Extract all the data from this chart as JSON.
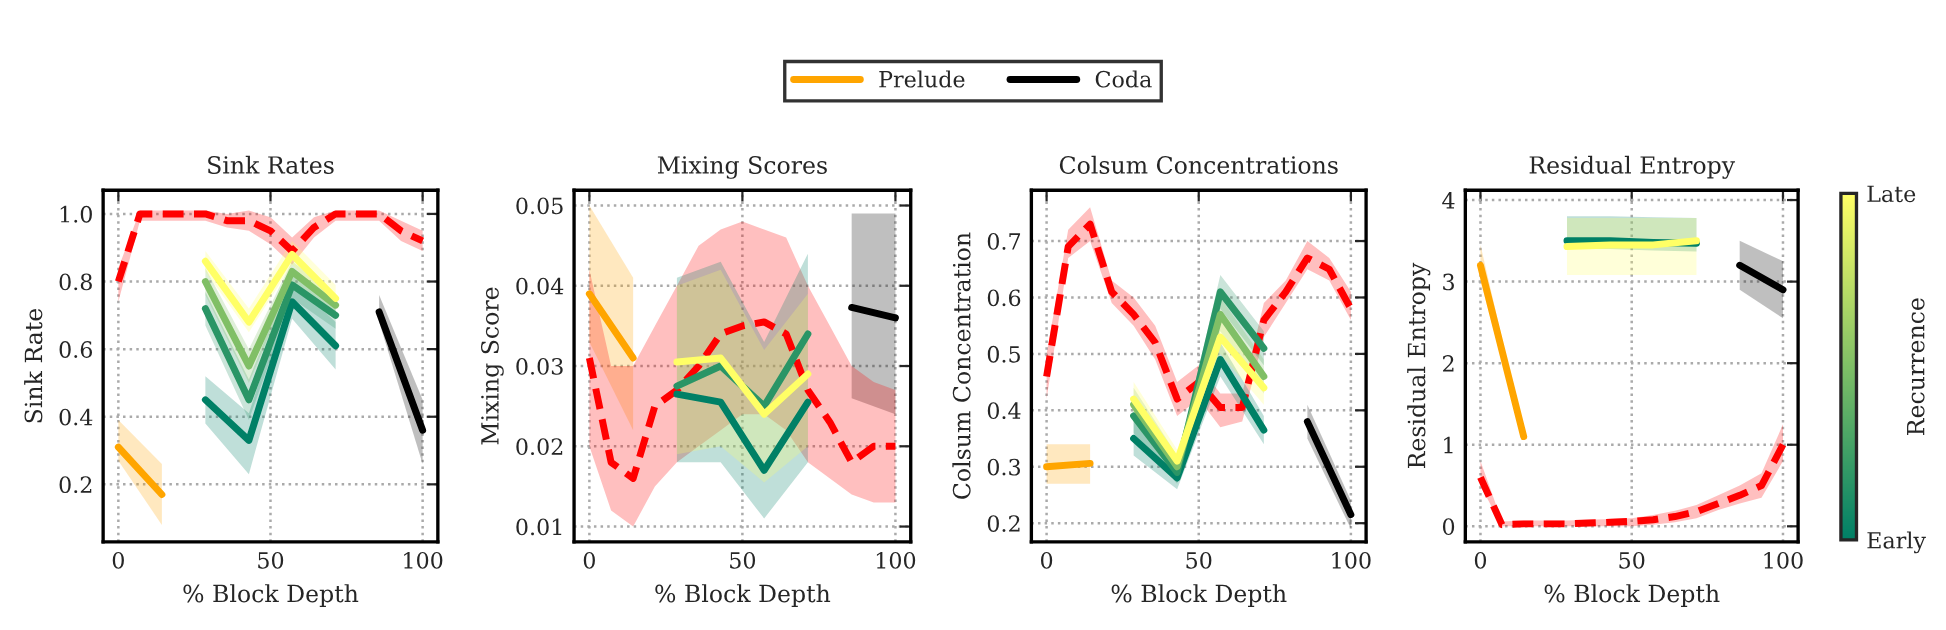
{
  "chart_data": [
    {
      "type": "line",
      "title": "Sink Rates",
      "xlabel": "% Block Depth",
      "ylabel": "Sink Rate",
      "xlim": [
        -5,
        105
      ],
      "ylim": [
        0.03,
        1.07
      ],
      "xticks": [
        0,
        50,
        100
      ],
      "yticks": [
        0.2,
        0.4,
        0.6,
        0.8,
        {
          "value": 1,
          "label": "1.0"
        }
      ],
      "grid": true,
      "legend": "top",
      "series": [
        {
          "name": "Prelude",
          "color": "#ffa500",
          "x": [
            0,
            14.3
          ],
          "values": [
            0.31,
            0.17
          ],
          "lower": [
            0.27,
            0.08
          ],
          "upper": [
            0.39,
            0.26
          ]
        },
        {
          "name": "Coda",
          "color": "#000000",
          "x": [
            85.7,
            100
          ],
          "values": [
            0.71,
            0.36
          ],
          "lower": [
            0.68,
            0.26
          ],
          "upper": [
            0.76,
            0.45
          ]
        },
        {
          "color": "#ff0000",
          "line_style": "dashed",
          "x": [
            0,
            7.1,
            14.3,
            21.4,
            28.6,
            35.7,
            42.9,
            50,
            57.1,
            64.3,
            71.4,
            78.6,
            85.7,
            92.9,
            100
          ],
          "values": [
            0.8,
            1.0,
            1.0,
            1.0,
            1.0,
            0.98,
            0.98,
            0.95,
            0.89,
            0.96,
            1.0,
            1.0,
            1.0,
            0.95,
            0.92
          ],
          "lower": [
            0.74,
            0.98,
            0.98,
            0.98,
            0.98,
            0.96,
            0.95,
            0.91,
            0.85,
            0.93,
            0.98,
            0.98,
            0.98,
            0.92,
            0.89
          ],
          "upper": [
            0.84,
            1.01,
            1.01,
            1.01,
            1.01,
            1.0,
            1.01,
            0.99,
            0.93,
            0.99,
            1.01,
            1.01,
            1.01,
            0.98,
            0.95
          ]
        },
        {
          "color": "#008066",
          "x": [
            28.6,
            42.9,
            57.1,
            71.4
          ],
          "values": [
            0.45,
            0.33,
            0.74,
            0.61
          ],
          "lower": [
            0.38,
            0.23,
            0.69,
            0.54
          ],
          "upper": [
            0.52,
            0.41,
            0.8,
            0.68
          ]
        },
        {
          "color": "#2a9566",
          "x": [
            28.6,
            42.9,
            57.1,
            71.4
          ],
          "values": [
            0.72,
            0.45,
            0.79,
            0.7
          ],
          "lower": [
            0.67,
            0.39,
            0.75,
            0.66
          ],
          "upper": [
            0.77,
            0.51,
            0.83,
            0.74
          ]
        },
        {
          "color": "#80bf66",
          "x": [
            28.6,
            42.9,
            57.1,
            71.4
          ],
          "values": [
            0.8,
            0.55,
            0.83,
            0.73
          ],
          "lower": [
            0.76,
            0.5,
            0.8,
            0.7
          ],
          "upper": [
            0.84,
            0.6,
            0.86,
            0.76
          ]
        },
        {
          "color": "#ffff66",
          "x": [
            28.6,
            42.9,
            57.1,
            71.4
          ],
          "values": [
            0.86,
            0.68,
            0.88,
            0.75
          ],
          "lower": [
            0.83,
            0.65,
            0.85,
            0.72
          ],
          "upper": [
            0.89,
            0.72,
            0.92,
            0.79
          ]
        }
      ]
    },
    {
      "type": "line",
      "title": "Mixing Scores",
      "xlabel": "% Block Depth",
      "ylabel": "Mixing Score",
      "xlim": [
        -5,
        105
      ],
      "ylim": [
        0.0081,
        0.0519
      ],
      "xticks": [
        0,
        50,
        100
      ],
      "yticks": [
        0.01,
        0.02,
        0.03,
        0.04,
        0.05
      ],
      "grid": true,
      "series": [
        {
          "color": "#ffa500",
          "x": [
            0,
            14.3
          ],
          "values": [
            0.039,
            0.031
          ],
          "lower": [
            0.033,
            0.022
          ],
          "upper": [
            0.05,
            0.041
          ]
        },
        {
          "color": "#000000",
          "x": [
            85.7,
            100
          ],
          "values": [
            0.0373,
            0.036
          ],
          "lower": [
            0.026,
            0.024
          ],
          "upper": [
            0.049,
            0.049
          ]
        },
        {
          "color": "#ff0000",
          "line_style": "dashed",
          "x": [
            0,
            7.1,
            14.3,
            21.4,
            28.6,
            35.7,
            42.9,
            50,
            57.1,
            64.3,
            71.4,
            78.6,
            85.7,
            92.9,
            100
          ],
          "values": [
            0.031,
            0.018,
            0.016,
            0.025,
            0.027,
            0.03,
            0.034,
            0.035,
            0.0355,
            0.034,
            0.027,
            0.023,
            0.018,
            0.02,
            0.02
          ],
          "lower": [
            0.02,
            0.012,
            0.01,
            0.015,
            0.018,
            0.02,
            0.022,
            0.024,
            0.024,
            0.022,
            0.018,
            0.016,
            0.014,
            0.013,
            0.013
          ],
          "upper": [
            0.042,
            0.03,
            0.03,
            0.035,
            0.04,
            0.045,
            0.047,
            0.048,
            0.047,
            0.046,
            0.04,
            0.035,
            0.03,
            0.028,
            0.027
          ]
        },
        {
          "color": "#008066",
          "x": [
            28.6,
            42.9,
            57.1,
            71.4
          ],
          "values": [
            0.0265,
            0.0255,
            0.017,
            0.0255
          ],
          "lower": [
            0.018,
            0.018,
            0.011,
            0.018
          ],
          "upper": [
            0.041,
            0.043,
            0.033,
            0.044
          ]
        },
        {
          "color": "#2a9566",
          "x": [
            28.6,
            42.9,
            57.1,
            71.4
          ],
          "values": [
            0.0275,
            0.03,
            0.025,
            0.034
          ]
        },
        {
          "color": "#ffff66",
          "x": [
            28.6,
            42.9,
            57.1,
            71.4
          ],
          "values": [
            0.0305,
            0.031,
            0.024,
            0.029
          ],
          "lower": [
            0.019,
            0.02,
            0.0155,
            0.02
          ],
          "upper": [
            0.04,
            0.042,
            0.032,
            0.039
          ]
        }
      ]
    },
    {
      "type": "line",
      "title": "Colsum Concentrations",
      "xlabel": "% Block Depth",
      "ylabel": "Colsum Concentration",
      "xlim": [
        -5,
        105
      ],
      "ylim": [
        0.167,
        0.79
      ],
      "xticks": [
        0,
        50,
        100
      ],
      "yticks": [
        0.2,
        0.3,
        0.4,
        0.5,
        0.6,
        0.7
      ],
      "grid": true,
      "series": [
        {
          "color": "#ffa500",
          "x": [
            0,
            14.3
          ],
          "values": [
            0.3,
            0.306
          ],
          "lower": [
            0.27,
            0.27
          ],
          "upper": [
            0.34,
            0.34
          ]
        },
        {
          "color": "#000000",
          "x": [
            85.7,
            100
          ],
          "values": [
            0.38,
            0.215
          ],
          "lower": [
            0.35,
            0.19
          ],
          "upper": [
            0.41,
            0.24
          ]
        },
        {
          "color": "#ff0000",
          "line_style": "dashed",
          "x": [
            0,
            7.1,
            14.3,
            21.4,
            28.6,
            35.7,
            42.9,
            50,
            57.1,
            64.3,
            71.4,
            78.6,
            85.7,
            92.9,
            100
          ],
          "values": [
            0.46,
            0.69,
            0.73,
            0.61,
            0.57,
            0.52,
            0.42,
            0.45,
            0.405,
            0.405,
            0.56,
            0.61,
            0.67,
            0.65,
            0.58
          ],
          "lower": [
            0.42,
            0.67,
            0.7,
            0.59,
            0.55,
            0.49,
            0.39,
            0.42,
            0.37,
            0.38,
            0.53,
            0.59,
            0.65,
            0.63,
            0.56
          ],
          "upper": [
            0.5,
            0.72,
            0.76,
            0.63,
            0.6,
            0.55,
            0.45,
            0.48,
            0.43,
            0.43,
            0.59,
            0.63,
            0.7,
            0.67,
            0.61
          ]
        },
        {
          "color": "#008066",
          "x": [
            28.6,
            42.9,
            57.1,
            71.4
          ],
          "values": [
            0.35,
            0.28,
            0.49,
            0.365
          ],
          "lower": [
            0.32,
            0.26,
            0.46,
            0.34
          ],
          "upper": [
            0.38,
            0.31,
            0.52,
            0.39
          ]
        },
        {
          "color": "#2a9566",
          "x": [
            28.6,
            42.9,
            57.1,
            71.4
          ],
          "values": [
            0.39,
            0.29,
            0.61,
            0.51
          ],
          "lower": [
            0.36,
            0.27,
            0.58,
            0.48
          ],
          "upper": [
            0.42,
            0.31,
            0.64,
            0.54
          ]
        },
        {
          "color": "#80bf66",
          "x": [
            28.6,
            42.9,
            57.1,
            71.4
          ],
          "values": [
            0.41,
            0.3,
            0.57,
            0.46
          ],
          "lower": [
            0.38,
            0.28,
            0.54,
            0.43
          ],
          "upper": [
            0.44,
            0.32,
            0.6,
            0.49
          ]
        },
        {
          "color": "#ffff66",
          "x": [
            28.6,
            42.9,
            57.1,
            71.4
          ],
          "values": [
            0.42,
            0.31,
            0.53,
            0.44
          ],
          "lower": [
            0.39,
            0.29,
            0.5,
            0.41
          ],
          "upper": [
            0.45,
            0.33,
            0.56,
            0.47
          ]
        }
      ]
    },
    {
      "type": "line",
      "title": "Residual Entropy",
      "xlabel": "% Block Depth",
      "ylabel": "Residual Entropy",
      "xlim": [
        -5,
        105
      ],
      "ylim": [
        -0.19,
        4.12
      ],
      "xticks": [
        0,
        50,
        100
      ],
      "yticks": [
        0,
        1,
        2,
        3,
        4
      ],
      "grid": true,
      "clabel": "Recurrence",
      "clim": [
        0,
        1
      ],
      "cticks": [
        {
          "value": 0,
          "label": "Early"
        },
        {
          "value": 1,
          "label": "Late"
        }
      ],
      "series": [
        {
          "color": "#ffa500",
          "x": [
            0,
            14.3
          ],
          "values": [
            3.2,
            1.1
          ],
          "lower": [
            3.0,
            1.05
          ],
          "upper": [
            3.45,
            1.15
          ]
        },
        {
          "color": "#000000",
          "x": [
            85.7,
            100
          ],
          "values": [
            3.2,
            2.9
          ],
          "lower": [
            2.9,
            2.55
          ],
          "upper": [
            3.5,
            3.25
          ]
        },
        {
          "color": "#ff0000",
          "line_style": "dashed",
          "x": [
            0,
            7.1,
            14.3,
            21.4,
            28.6,
            35.7,
            42.9,
            50,
            57.1,
            64.3,
            71.4,
            78.6,
            85.7,
            92.9,
            100
          ],
          "values": [
            0.6,
            0.02,
            0.03,
            0.03,
            0.03,
            0.04,
            0.05,
            0.06,
            0.08,
            0.12,
            0.18,
            0.28,
            0.38,
            0.5,
            1.0
          ],
          "lower": [
            0.5,
            0.0,
            0.0,
            0.0,
            0.0,
            0.0,
            0.0,
            0.0,
            0.02,
            0.05,
            0.1,
            0.2,
            0.28,
            0.35,
            0.8
          ],
          "upper": [
            0.8,
            0.06,
            0.07,
            0.07,
            0.07,
            0.08,
            0.09,
            0.1,
            0.14,
            0.19,
            0.26,
            0.38,
            0.5,
            0.65,
            1.25
          ]
        },
        {
          "color": "#008066",
          "x": [
            28.6,
            42.9,
            57.1,
            71.4
          ],
          "values": [
            3.5,
            3.5,
            3.48,
            3.47
          ],
          "lower": [
            3.4,
            3.4,
            3.38,
            3.37
          ],
          "upper": [
            3.8,
            3.8,
            3.79,
            3.78
          ]
        },
        {
          "color": "#ffff66",
          "x": [
            28.6,
            42.9,
            57.1,
            71.4
          ],
          "values": [
            3.43,
            3.45,
            3.45,
            3.5
          ],
          "lower": [
            3.08,
            3.08,
            3.08,
            3.08
          ],
          "upper": [
            3.78,
            3.78,
            3.78,
            3.78
          ]
        }
      ]
    }
  ]
}
